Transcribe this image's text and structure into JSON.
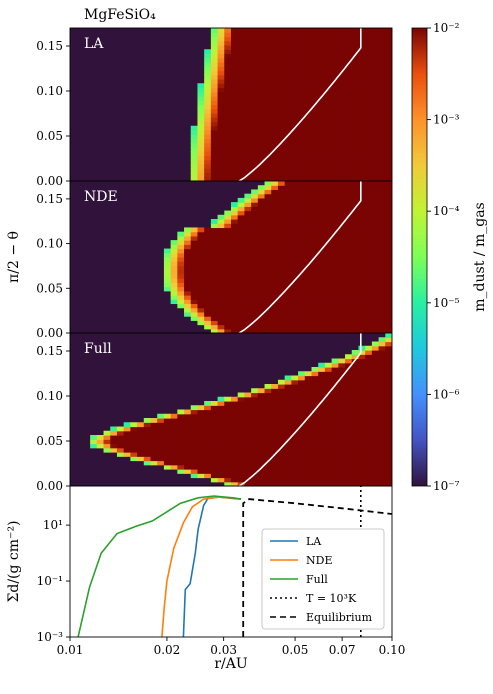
{
  "chart_data": [
    {
      "type": "heatmap",
      "title": "MgFeSiO₄",
      "panels": [
        {
          "label": "LA"
        },
        {
          "label": "NDE"
        },
        {
          "label": "Full"
        }
      ],
      "xlabel": "r/AU",
      "ylabel": "π/2 − θ",
      "xlim": [
        0.01,
        0.1
      ],
      "xscale": "log",
      "ylim": [
        0,
        0.17
      ],
      "yticks": [
        "0.00",
        "0.05",
        "0.10",
        "0.15"
      ],
      "colorbar": {
        "label": "m_dust / m_gas",
        "scale": "log",
        "range": [
          1e-07,
          0.01
        ],
        "ticks": [
          "10⁻⁷",
          "10⁻⁶",
          "10⁻⁵",
          "10⁻⁴",
          "10⁻³",
          "10⁻²"
        ]
      },
      "boundary_rinner": {
        "LA": 0.025,
        "NDE": 0.019,
        "Full": 0.012
      }
    },
    {
      "type": "line",
      "xlabel": "r/AU",
      "ylabel": "Σd/(g cm⁻²)",
      "xscale": "log",
      "yscale": "log",
      "xlim": [
        0.01,
        0.1
      ],
      "ylim": [
        0.001,
        250
      ],
      "xticks": [
        "0.01",
        "0.02",
        "0.03",
        "0.05",
        "0.07",
        "0.10"
      ],
      "yticks": [
        "10⁻³",
        "10⁻¹",
        "10¹"
      ],
      "legend_position": "bottom-right",
      "series": [
        {
          "name": "LA",
          "color": "#1f77b4",
          "points": [
            [
              0.0225,
              0.001
            ],
            [
              0.0228,
              0.05
            ],
            [
              0.0236,
              0.08
            ],
            [
              0.0245,
              1
            ],
            [
              0.025,
              7
            ],
            [
              0.026,
              50
            ],
            [
              0.0268,
              90
            ],
            [
              0.029,
              100
            ],
            [
              0.032,
              90
            ],
            [
              0.034,
              85
            ]
          ]
        },
        {
          "name": "NDE",
          "color": "#ff7f0e",
          "points": [
            [
              0.0193,
              0.001
            ],
            [
              0.0196,
              0.01
            ],
            [
              0.02,
              0.1
            ],
            [
              0.021,
              1.5
            ],
            [
              0.0225,
              12
            ],
            [
              0.024,
              45
            ],
            [
              0.026,
              85
            ],
            [
              0.029,
              100
            ],
            [
              0.033,
              90
            ]
          ]
        },
        {
          "name": "Full",
          "color": "#2ca02c",
          "points": [
            [
              0.0106,
              0.001
            ],
            [
              0.0115,
              0.06
            ],
            [
              0.0125,
              1
            ],
            [
              0.014,
              5
            ],
            [
              0.016,
              9
            ],
            [
              0.018,
              14
            ],
            [
              0.02,
              30
            ],
            [
              0.022,
              60
            ],
            [
              0.025,
              95
            ],
            [
              0.028,
              110
            ],
            [
              0.032,
              95
            ],
            [
              0.034,
              85
            ]
          ]
        },
        {
          "name": "T = 10³K",
          "style": "dotted",
          "points": [
            [
              0.08,
              0.001
            ],
            [
              0.08,
              250
            ]
          ]
        },
        {
          "name": "Equilibrium",
          "style": "dashed",
          "points": [
            [
              0.0345,
              0.001
            ],
            [
              0.0345,
              60
            ],
            [
              0.036,
              85
            ],
            [
              0.05,
              60
            ],
            [
              0.07,
              40
            ],
            [
              0.1,
              25
            ]
          ]
        }
      ]
    }
  ]
}
